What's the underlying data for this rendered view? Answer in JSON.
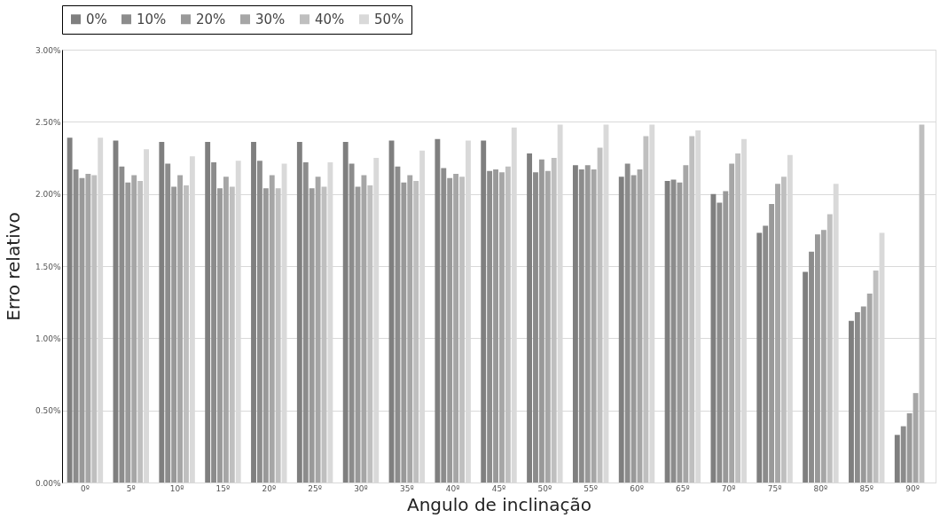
{
  "chart_data": {
    "type": "bar",
    "xlabel": "Angulo de inclinação",
    "ylabel": "Erro relativo",
    "categories": [
      "0º",
      "5º",
      "10º",
      "15º",
      "20º",
      "25º",
      "30º",
      "35º",
      "40º",
      "45º",
      "50º",
      "55º",
      "60º",
      "65º",
      "70º",
      "75º",
      "80º",
      "85º",
      "90º"
    ],
    "series": [
      {
        "name": "0%",
        "color": "#7f7f7f",
        "values": [
          2.39,
          2.37,
          2.36,
          2.36,
          2.36,
          2.36,
          2.36,
          2.37,
          2.38,
          2.37,
          2.28,
          2.2,
          2.12,
          2.09,
          2.0,
          1.73,
          1.46,
          1.12,
          0.33
        ]
      },
      {
        "name": "10%",
        "color": "#8c8c8c",
        "values": [
          2.17,
          2.19,
          2.21,
          2.22,
          2.23,
          2.22,
          2.21,
          2.19,
          2.18,
          2.16,
          2.15,
          2.17,
          2.21,
          2.1,
          1.94,
          1.78,
          1.6,
          1.18,
          0.39
        ]
      },
      {
        "name": "20%",
        "color": "#999999",
        "values": [
          2.11,
          2.08,
          2.05,
          2.04,
          2.04,
          2.04,
          2.05,
          2.08,
          2.11,
          2.17,
          2.24,
          2.2,
          2.13,
          2.08,
          2.02,
          1.93,
          1.72,
          1.22,
          0.48
        ]
      },
      {
        "name": "30%",
        "color": "#a6a6a6",
        "values": [
          2.14,
          2.13,
          2.13,
          2.12,
          2.13,
          2.12,
          2.13,
          2.13,
          2.14,
          2.15,
          2.16,
          2.17,
          2.17,
          2.2,
          2.21,
          2.07,
          1.75,
          1.31,
          0.62
        ]
      },
      {
        "name": "40%",
        "color": "#bfbfbf",
        "values": [
          2.13,
          2.09,
          2.06,
          2.05,
          2.04,
          2.05,
          2.06,
          2.09,
          2.12,
          2.19,
          2.25,
          2.32,
          2.4,
          2.4,
          2.28,
          2.12,
          1.86,
          1.47,
          2.48
        ]
      },
      {
        "name": "50%",
        "color": "#d9d9d9",
        "values": [
          2.39,
          2.31,
          2.26,
          2.23,
          2.21,
          2.22,
          2.25,
          2.3,
          2.37,
          2.46,
          2.48,
          2.48,
          2.48,
          2.44,
          2.38,
          2.27,
          2.07,
          1.73,
          null
        ]
      }
    ],
    "ylim": [
      0,
      3
    ],
    "yticks": [
      {
        "value": 0,
        "label": "0.00%"
      },
      {
        "value": 0.5,
        "label": "0.50%"
      },
      {
        "value": 1,
        "label": "1.00%"
      },
      {
        "value": 1.5,
        "label": "1.50%"
      },
      {
        "value": 2,
        "label": "2.00%"
      },
      {
        "value": 2.5,
        "label": "2.50%"
      },
      {
        "value": 3,
        "label": "3.00%"
      }
    ],
    "grid": "y",
    "legend": "top"
  }
}
